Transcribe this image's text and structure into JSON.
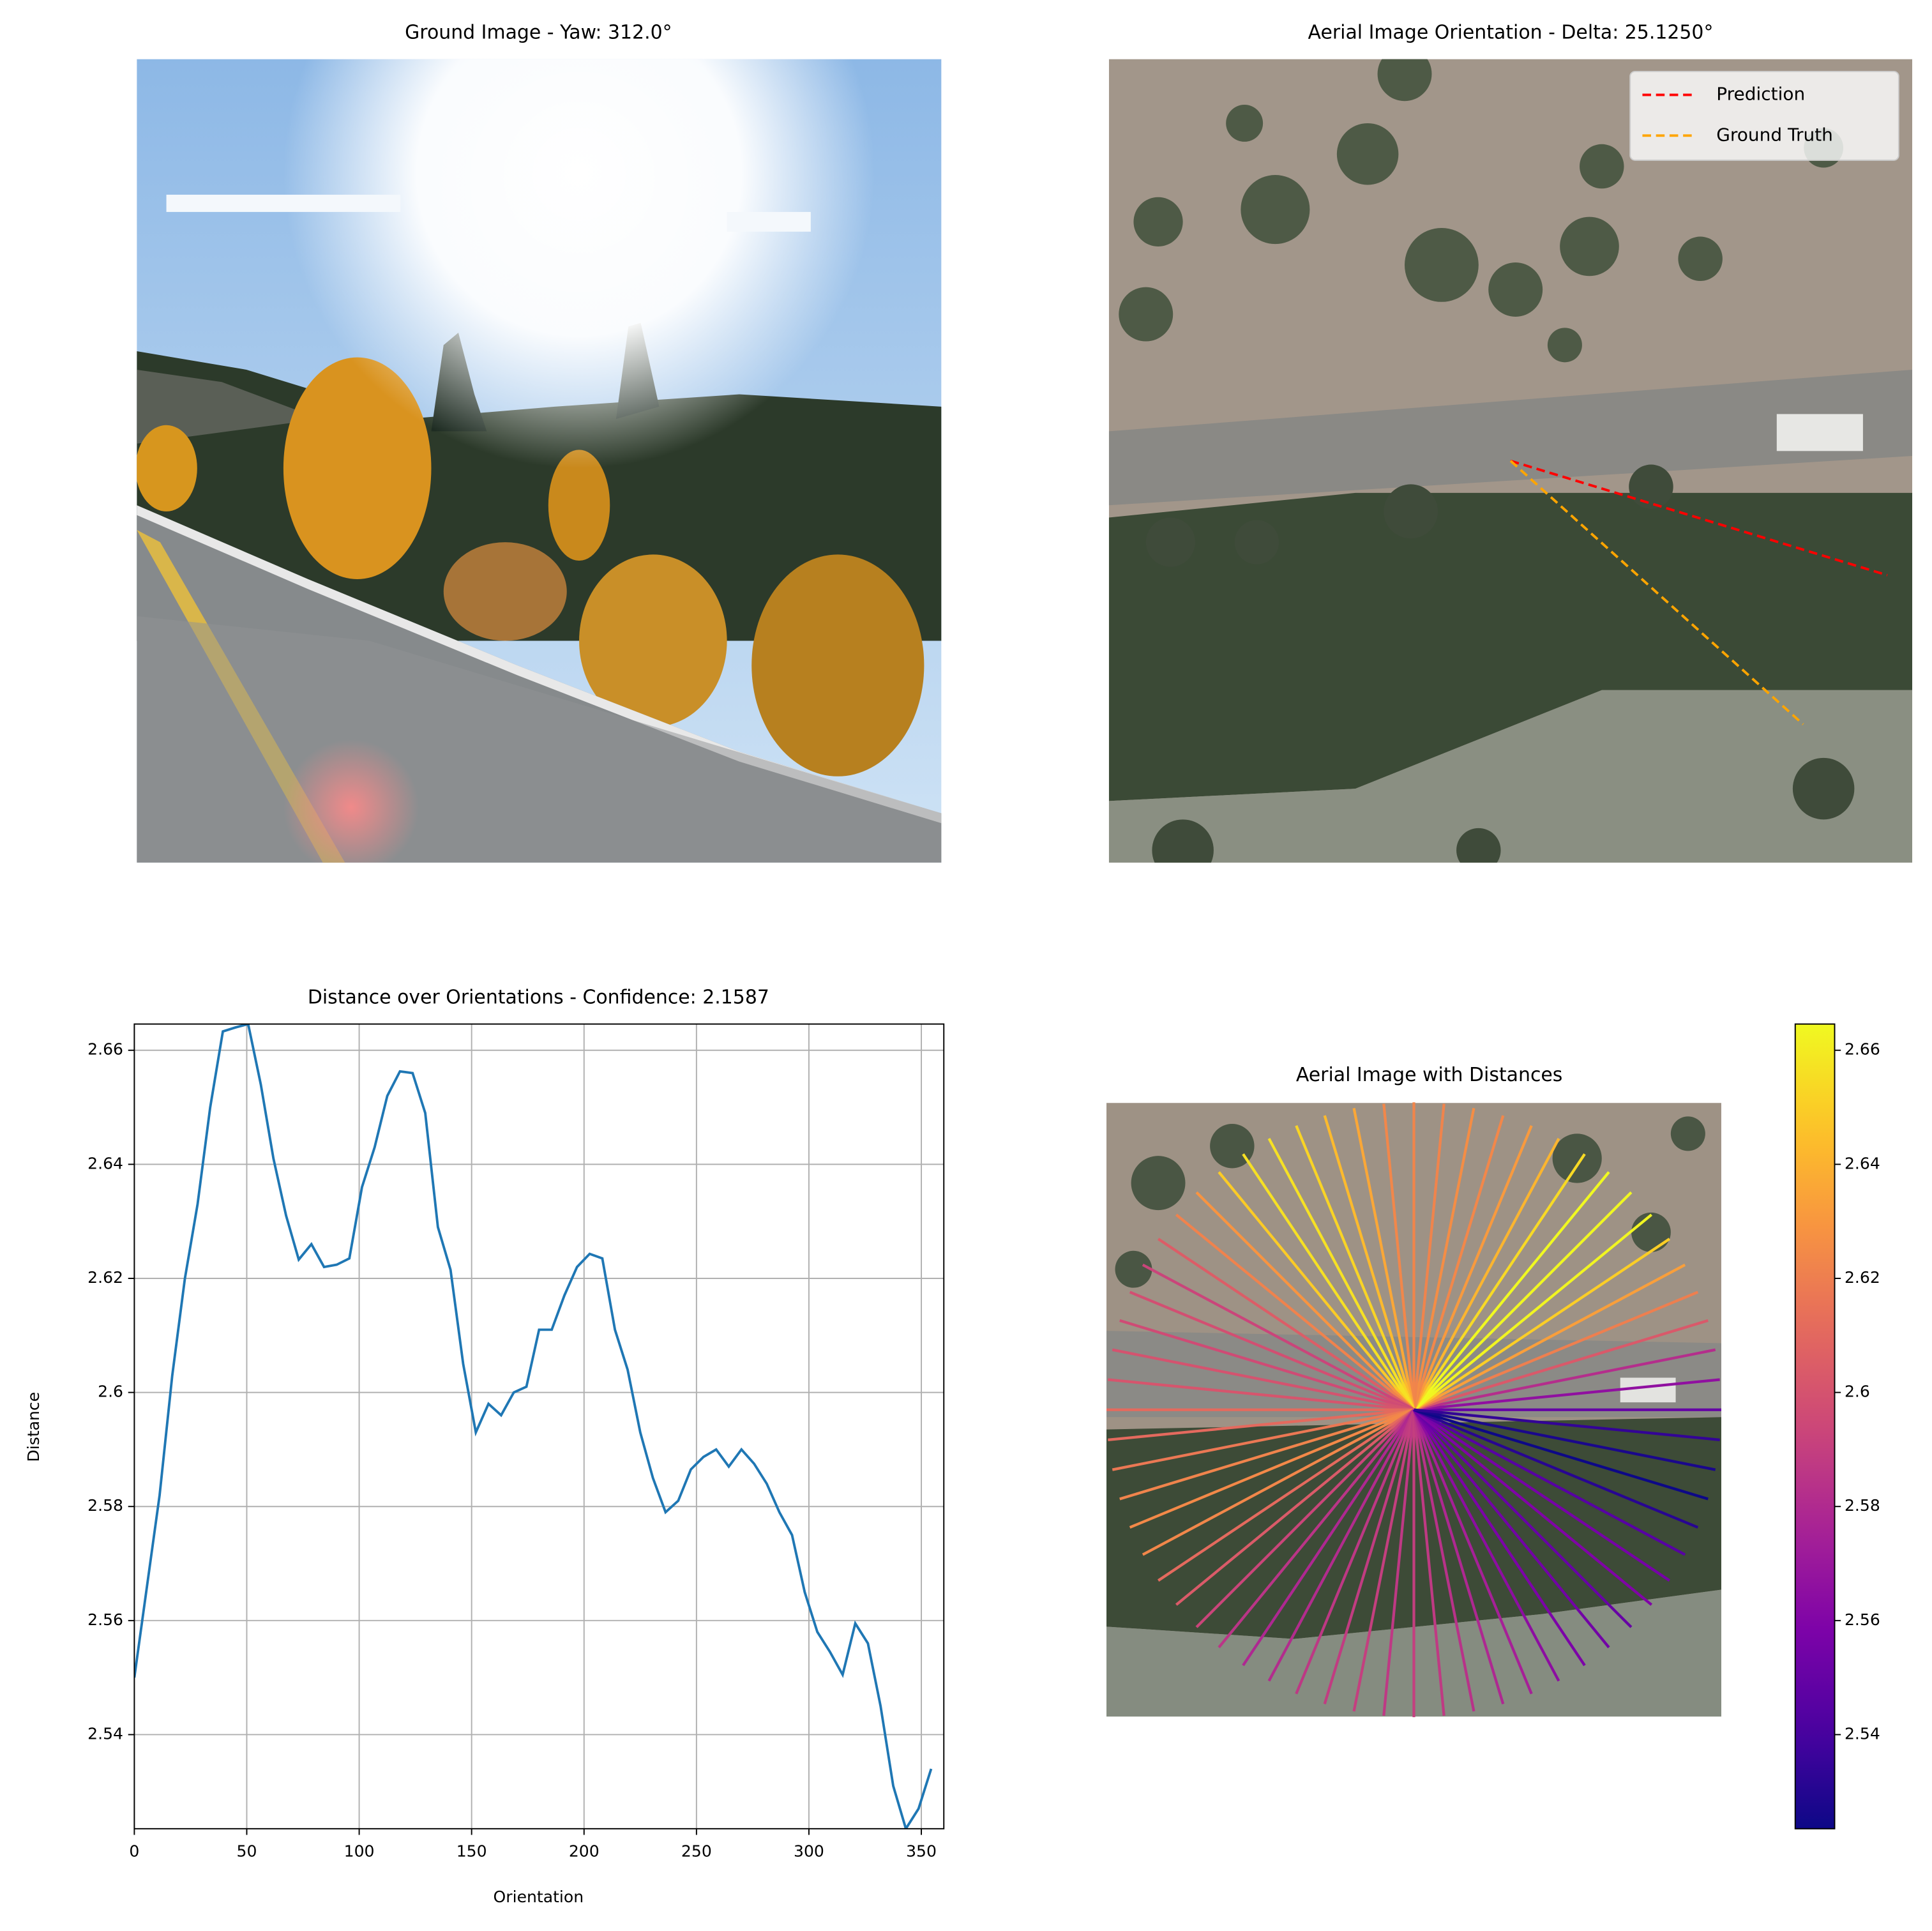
{
  "chart_data": [
    {
      "type": "image",
      "title": "Ground Image - Yaw: 312.0°"
    },
    {
      "type": "image",
      "title": "Aerial Image Orientation - Delta: 25.1250°",
      "legend": "upper right",
      "series": [
        {
          "name": "Prediction",
          "color": "#ff0000",
          "angle": 343.125
        },
        {
          "name": "Ground Truth",
          "color": "#ffa500",
          "angle": 318.0
        }
      ]
    },
    {
      "type": "line",
      "title": "Distance over Orientations - Confidence: 2.1587",
      "xlabel": "Orientation",
      "ylabel": "Distance",
      "x": [
        0,
        5.625,
        11.25,
        16.875,
        22.5,
        28.125,
        33.75,
        39.375,
        45,
        50.625,
        56.25,
        61.875,
        67.5,
        73.125,
        78.75,
        84.375,
        90,
        95.625,
        101.25,
        106.875,
        112.5,
        118.125,
        123.75,
        129.375,
        135,
        140.625,
        146.25,
        151.875,
        157.5,
        163.125,
        168.75,
        174.375,
        180,
        185.625,
        191.25,
        196.875,
        202.5,
        208.125,
        213.75,
        219.375,
        225,
        230.625,
        236.25,
        241.875,
        247.5,
        253.125,
        258.75,
        264.375,
        270,
        275.625,
        281.25,
        286.875,
        292.5,
        298.125,
        303.75,
        309.375,
        315,
        320.625,
        326.25,
        331.875,
        337.5,
        343.125,
        348.75,
        354.375
      ],
      "values": [
        2.55,
        2.566,
        2.582,
        2.603,
        2.62,
        2.633,
        2.65,
        2.6633,
        2.664,
        2.6646,
        2.654,
        2.641,
        2.631,
        2.6233,
        2.626,
        2.622,
        2.6224,
        2.6235,
        2.636,
        2.643,
        2.652,
        2.6563,
        2.656,
        2.649,
        2.629,
        2.6215,
        2.605,
        2.593,
        2.598,
        2.596,
        2.6,
        2.601,
        2.611,
        2.611,
        2.617,
        2.622,
        2.6243,
        2.6235,
        2.611,
        2.604,
        2.593,
        2.585,
        2.579,
        2.581,
        2.5865,
        2.5887,
        2.59,
        2.587,
        2.59,
        2.5875,
        2.584,
        2.579,
        2.575,
        2.565,
        2.558,
        2.5545,
        2.5505,
        2.5595,
        2.556,
        2.545,
        2.531,
        2.5235,
        2.527,
        2.534
      ],
      "color": "#1f77b4",
      "grid": true,
      "xlim": [
        0,
        360
      ],
      "xticks": [
        0,
        50,
        100,
        150,
        200,
        250,
        300,
        350
      ],
      "ylim": [
        2.5235,
        2.6646
      ],
      "yticks": [
        2.54,
        2.56,
        2.58,
        2.6,
        2.62,
        2.64,
        2.66
      ]
    },
    {
      "type": "radial",
      "title": "Aerial Image with Distances",
      "colormap": "plasma",
      "x": [
        0,
        5.625,
        11.25,
        16.875,
        22.5,
        28.125,
        33.75,
        39.375,
        45,
        50.625,
        56.25,
        61.875,
        67.5,
        73.125,
        78.75,
        84.375,
        90,
        95.625,
        101.25,
        106.875,
        112.5,
        118.125,
        123.75,
        129.375,
        135,
        140.625,
        146.25,
        151.875,
        157.5,
        163.125,
        168.75,
        174.375,
        180,
        185.625,
        191.25,
        196.875,
        202.5,
        208.125,
        213.75,
        219.375,
        225,
        230.625,
        236.25,
        241.875,
        247.5,
        253.125,
        258.75,
        264.375,
        270,
        275.625,
        281.25,
        286.875,
        292.5,
        298.125,
        303.75,
        309.375,
        315,
        320.625,
        326.25,
        331.875,
        337.5,
        343.125,
        348.75,
        354.375
      ],
      "values": [
        2.55,
        2.566,
        2.582,
        2.603,
        2.62,
        2.633,
        2.65,
        2.6633,
        2.664,
        2.6646,
        2.654,
        2.641,
        2.631,
        2.6233,
        2.626,
        2.622,
        2.6224,
        2.6235,
        2.636,
        2.643,
        2.652,
        2.6563,
        2.656,
        2.649,
        2.629,
        2.6215,
        2.605,
        2.593,
        2.598,
        2.596,
        2.6,
        2.601,
        2.611,
        2.611,
        2.617,
        2.622,
        2.6243,
        2.6235,
        2.611,
        2.604,
        2.593,
        2.585,
        2.579,
        2.581,
        2.5865,
        2.5887,
        2.59,
        2.587,
        2.59,
        2.5875,
        2.584,
        2.579,
        2.575,
        2.565,
        2.558,
        2.5545,
        2.5505,
        2.5595,
        2.556,
        2.545,
        2.531,
        2.5235,
        2.527,
        2.534
      ],
      "clim": [
        2.5235,
        2.6646
      ],
      "cticks": [
        2.54,
        2.56,
        2.58,
        2.6,
        2.62,
        2.64,
        2.66
      ]
    }
  ]
}
